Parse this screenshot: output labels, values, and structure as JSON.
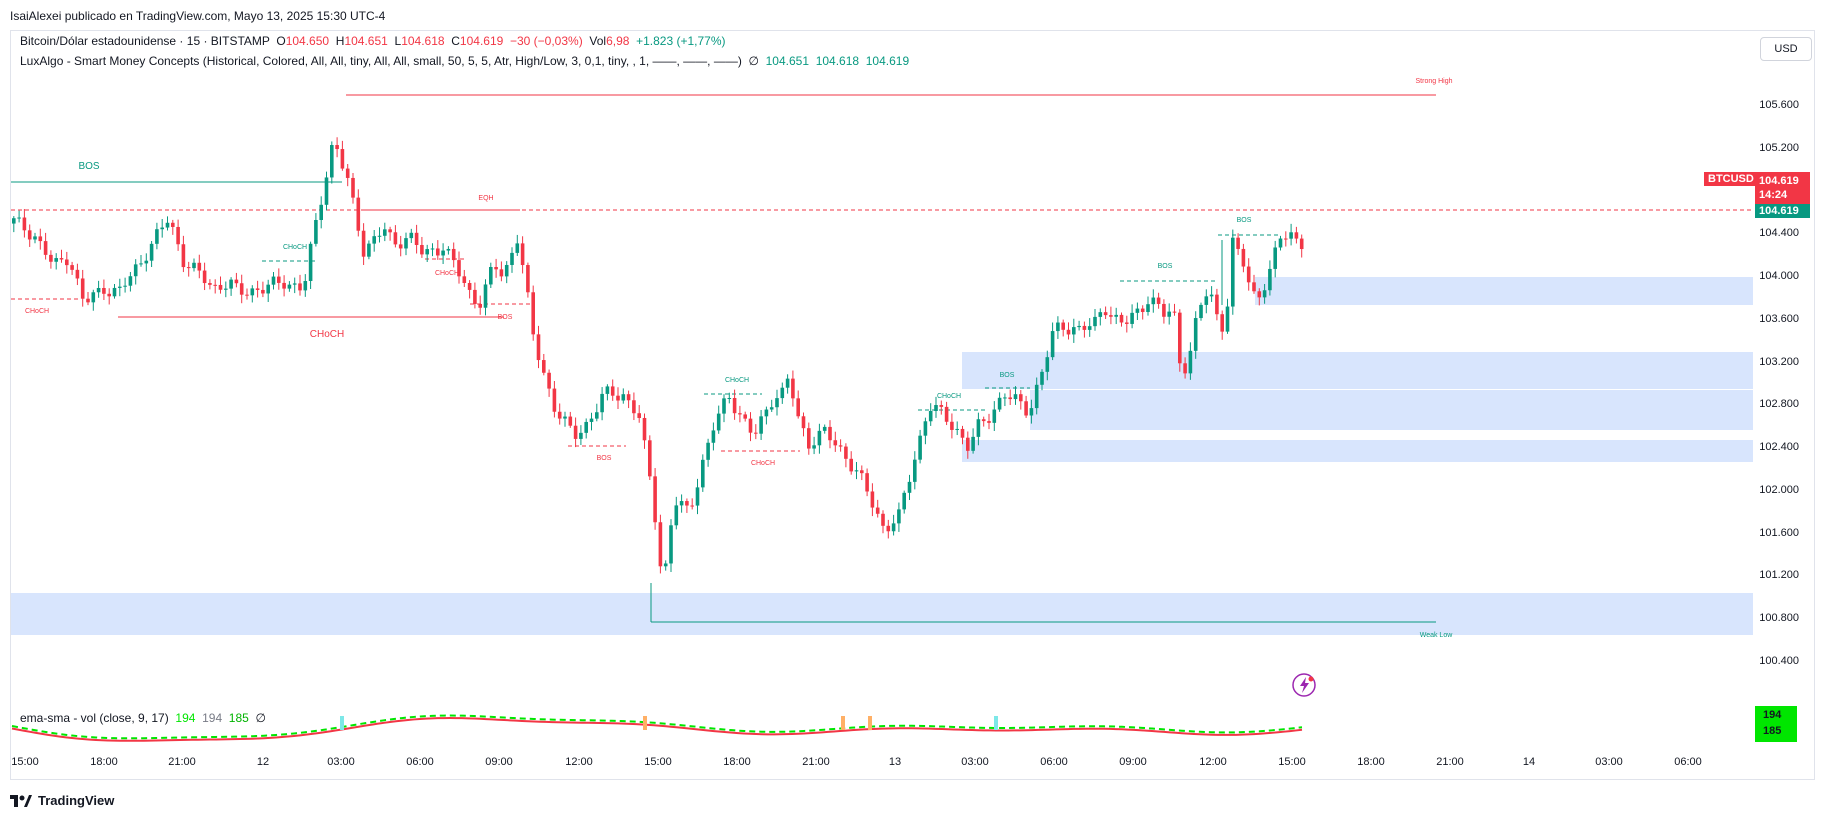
{
  "publisher_line": "IsaiAlexei publicado en TradingView.com, Mayo 13, 2025 15:30 UTC-4",
  "currency": "USD",
  "legend": {
    "symbol_line": "Bitcoin/Dólar estadounidense · 15 · BITSTAMP",
    "o_label": "O",
    "o_val": "104.650",
    "h_label": "H",
    "h_val": "104.651",
    "l_label": "L",
    "l_val": "104.618",
    "c_label": "C",
    "c_val": "104.619",
    "change": "−30 (−0,03%)",
    "vol_label": "Vol",
    "vol_val": "6,98",
    "vol_change": "+1.823 (+1,77%)",
    "indicator": "LuxAlgo - Smart Money Concepts (Historical, Colored, All, All, tiny, All, All, small, 50, 5, 5, Atr, High/Low, 3, 0,1, tiny, , 1, ——, ——, ——)",
    "ind_icon": "∅",
    "ind_v1": "104.651",
    "ind_v2": "104.618",
    "ind_v3": "104.619",
    "sub_indicator": "ema-sma - vol (close, 9, 17)",
    "sub_v1": "194",
    "sub_v2": "194",
    "sub_v3": "185",
    "sub_icon": "∅"
  },
  "price_ticks": [
    "105.600",
    "105.200",
    "104.800",
    "104.400",
    "104.000",
    "103.600",
    "103.200",
    "102.800",
    "102.400",
    "102.000",
    "101.600",
    "101.200",
    "100.800",
    "100.400"
  ],
  "time_ticks": [
    "15:00",
    "18:00",
    "21:00",
    "12",
    "03:00",
    "06:00",
    "09:00",
    "12:00",
    "15:00",
    "18:00",
    "21:00",
    "13",
    "03:00",
    "06:00",
    "09:00",
    "12:00",
    "15:00",
    "18:00",
    "21:00",
    "14",
    "03:00",
    "06:00"
  ],
  "badges": {
    "symbol": "BTCUSD",
    "price": "104.619",
    "countdown": "14:24",
    "price2": "104.619",
    "sub_a": "194",
    "sub_b": "185"
  },
  "annotations": {
    "strong_high": "Strong High",
    "weak_low": "Weak Low",
    "bos": "BOS",
    "choch": "CHoCH",
    "eqh": "EQH"
  },
  "colors": {
    "up": "#089981",
    "down": "#f23645",
    "zone": "#d6e4fd",
    "badge_red": "#f23645",
    "badge_green": "#089981",
    "vol_green": "#00e600"
  },
  "footer": "TradingView",
  "icons": [
    "tradingview-logo-icon",
    "lightning-icon"
  ]
}
